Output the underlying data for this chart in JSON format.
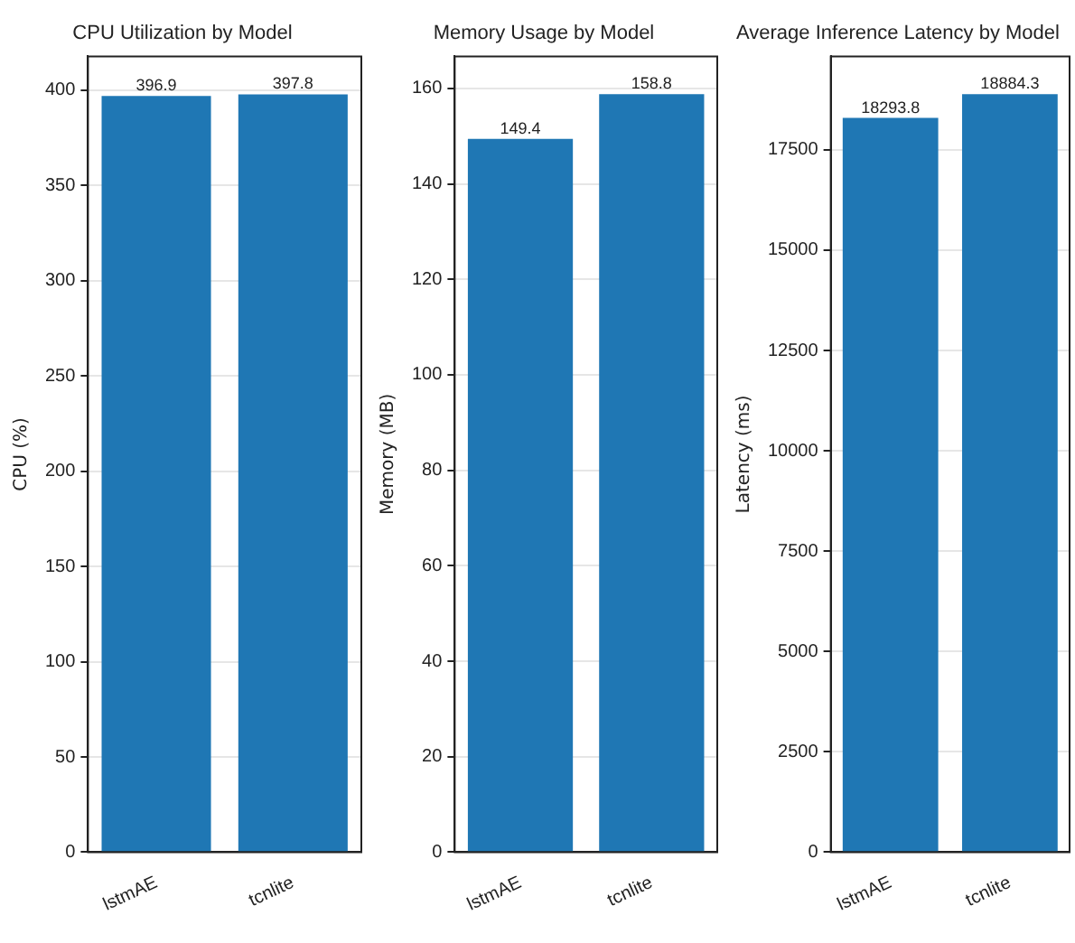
{
  "chart_data": [
    {
      "type": "bar",
      "title": "CPU Utilization by Model",
      "ylabel": "CPU (%)",
      "categories": [
        "lstmAE",
        "tcnlite"
      ],
      "values": [
        396.9,
        397.8
      ],
      "color": "#1f77b4",
      "ylim": [
        0,
        417.7
      ],
      "yticks": [
        0,
        50,
        100,
        150,
        200,
        250,
        300,
        350,
        400
      ],
      "grid": "y",
      "data_labels": true
    },
    {
      "type": "bar",
      "title": "Memory Usage by Model",
      "ylabel": "Memory (MB)",
      "categories": [
        "lstmAE",
        "tcnlite"
      ],
      "values": [
        149.4,
        158.8
      ],
      "color": "#1f77b4",
      "ylim": [
        0,
        166.7
      ],
      "yticks": [
        0,
        20,
        40,
        60,
        80,
        100,
        120,
        140,
        160
      ],
      "grid": "y",
      "data_labels": true
    },
    {
      "type": "bar",
      "title": "Average Inference Latency by Model",
      "ylabel": "Latency (ms)",
      "categories": [
        "lstmAE",
        "tcnlite"
      ],
      "values": [
        18293.8,
        18884.3
      ],
      "color": "#1f77b4",
      "ylim": [
        0,
        19828.5
      ],
      "yticks": [
        0,
        2500,
        5000,
        7500,
        10000,
        12500,
        15000,
        17500
      ],
      "grid": "y",
      "data_labels": true
    }
  ]
}
